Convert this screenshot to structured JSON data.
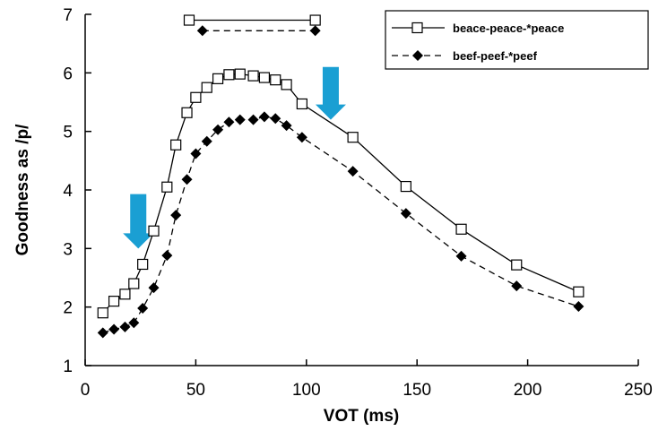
{
  "chart_data": {
    "type": "line",
    "xlabel": "VOT (ms)",
    "ylabel": "Goodness as /p/",
    "xlim": [
      0,
      250
    ],
    "ylim": [
      1,
      7
    ],
    "xticks": [
      0,
      50,
      100,
      150,
      200,
      250
    ],
    "yticks": [
      1,
      2,
      3,
      4,
      5,
      6,
      7
    ],
    "grid": false,
    "legend_position": "top-right",
    "series": [
      {
        "name": "beace-peace-*peace",
        "marker": "open-square",
        "line": "solid",
        "x": [
          8,
          13,
          18,
          22,
          26,
          31,
          37,
          41,
          46,
          50,
          55,
          60,
          65,
          70,
          76,
          81,
          86,
          91,
          98,
          121,
          145,
          170,
          195,
          223
        ],
        "y": [
          1.9,
          2.1,
          2.22,
          2.4,
          2.73,
          3.3,
          4.05,
          4.77,
          5.32,
          5.58,
          5.75,
          5.9,
          5.97,
          5.98,
          5.95,
          5.92,
          5.88,
          5.8,
          5.47,
          4.9,
          4.06,
          3.33,
          2.72,
          2.26
        ],
        "ref_x": [
          47,
          104
        ],
        "ref_y": 6.9
      },
      {
        "name": "beef-peef-*peef",
        "marker": "filled-diamond",
        "line": "dashed",
        "x": [
          8,
          13,
          18,
          22,
          26,
          31,
          37,
          41,
          46,
          50,
          55,
          60,
          65,
          70,
          76,
          81,
          86,
          91,
          98,
          121,
          145,
          170,
          195,
          223
        ],
        "y": [
          1.56,
          1.62,
          1.66,
          1.73,
          1.98,
          2.33,
          2.88,
          3.57,
          4.18,
          4.62,
          4.83,
          5.03,
          5.16,
          5.2,
          5.2,
          5.25,
          5.22,
          5.1,
          4.9,
          4.32,
          3.6,
          2.87,
          2.36,
          2.01
        ],
        "ref_x": [
          53,
          104
        ],
        "ref_y": 6.72
      }
    ],
    "annotations": [
      {
        "type": "arrow-down",
        "x": 24,
        "y_top": 3.93,
        "y_bottom": 3.0,
        "color": "#1a9fd3"
      },
      {
        "type": "arrow-down",
        "x": 111,
        "y_top": 6.1,
        "y_bottom": 5.2,
        "color": "#1a9fd3"
      }
    ]
  }
}
